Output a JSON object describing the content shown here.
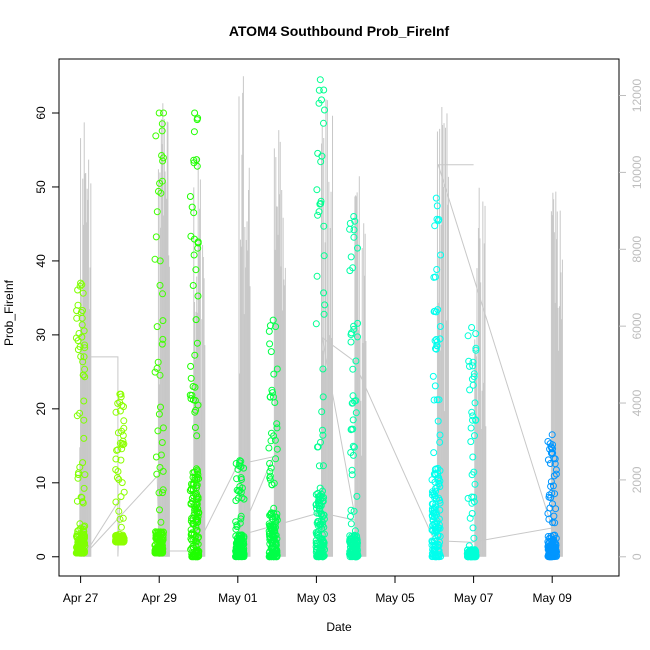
{
  "chart_data": {
    "type": "scatter",
    "title": "ATOM4 Southbound Prob_FireInf",
    "xlabel": "Date",
    "ylabel": "Prob_FireInf",
    "x_ticks": [
      "Apr 27",
      "Apr 29",
      "May 01",
      "May 03",
      "May 05",
      "May 07",
      "May 09"
    ],
    "x_ticks_day": [
      0,
      2,
      4,
      6,
      8,
      10,
      12
    ],
    "xlim_day": [
      -0.55,
      13.7
    ],
    "y_ticks": [
      0,
      10,
      20,
      30,
      40,
      50,
      60
    ],
    "ylim": [
      -2.6,
      67.3
    ],
    "y2_ticks": [
      0,
      2000,
      4000,
      6000,
      8000,
      10000,
      12000
    ],
    "y2lim": [
      -500,
      12950
    ],
    "grid": false,
    "legend": "none",
    "clusters": [
      {
        "day": 0.0,
        "ymin": 0.5,
        "ymax": 37,
        "color": "#7fff00",
        "top_max": 4
      },
      {
        "day": 1.0,
        "ymin": 2,
        "ymax": 22,
        "color": "#8cff00",
        "top_max": 1
      },
      {
        "day": 2.0,
        "ymin": 0.5,
        "ymax": 60,
        "color": "#3fff00",
        "top_max": 3
      },
      {
        "day": 2.9,
        "ymin": 0,
        "ymax": 60,
        "color": "#1fff00",
        "top_max": 12
      },
      {
        "day": 4.05,
        "ymin": 0,
        "ymax": 13,
        "color": "#00ff40",
        "top_max": 3
      },
      {
        "day": 4.9,
        "ymin": 0,
        "ymax": 32,
        "color": "#00ff48",
        "top_max": 6
      },
      {
        "day": 6.1,
        "ymin": 0,
        "ymax": 64.5,
        "color": "#00ff90",
        "top_max": 9
      },
      {
        "day": 6.95,
        "ymin": 0,
        "ymax": 46,
        "color": "#00ffa8",
        "top_max": 3
      },
      {
        "day": 9.05,
        "ymin": 0,
        "ymax": 48.5,
        "color": "#00ffee",
        "top_max": 12
      },
      {
        "day": 9.95,
        "ymin": 0,
        "ymax": 31,
        "color": "#00ffd8",
        "top_max": 1
      },
      {
        "day": 12.0,
        "ymin": 0,
        "ymax": 16.5,
        "color": "#0096ff",
        "top_max": 3
      }
    ],
    "bursts": [
      {
        "day": 0.0,
        "peak": 11300
      },
      {
        "day": 2.0,
        "peak": 11800
      },
      {
        "day": 2.9,
        "peak": 10400
      },
      {
        "day": 4.05,
        "peak": 12500
      },
      {
        "day": 4.95,
        "peak": 11100
      },
      {
        "day": 6.15,
        "peak": 11900
      },
      {
        "day": 7.0,
        "peak": 9900
      },
      {
        "day": 9.1,
        "peak": 11700
      },
      {
        "day": 10.05,
        "peak": 9600
      },
      {
        "day": 12.0,
        "peak": 9500
      }
    ],
    "connector": [
      [
        0.1,
        0
      ],
      [
        0.1,
        5200
      ],
      [
        0.95,
        5200
      ],
      [
        0.95,
        7
      ],
      [
        1.0,
        1500
      ],
      [
        0.1,
        50
      ],
      [
        1.95,
        2100
      ],
      [
        2.0,
        150
      ],
      [
        2.9,
        150
      ],
      [
        4.0,
        2400
      ],
      [
        4.9,
        2600
      ],
      [
        4.05,
        560
      ],
      [
        6.1,
        1150
      ],
      [
        7.0,
        950
      ],
      [
        6.15,
        5700
      ],
      [
        6.95,
        5100
      ],
      [
        9.0,
        420
      ],
      [
        9.95,
        380
      ],
      [
        12.0,
        750
      ],
      [
        9.1,
        10200
      ],
      [
        10.0,
        10200
      ]
    ]
  }
}
